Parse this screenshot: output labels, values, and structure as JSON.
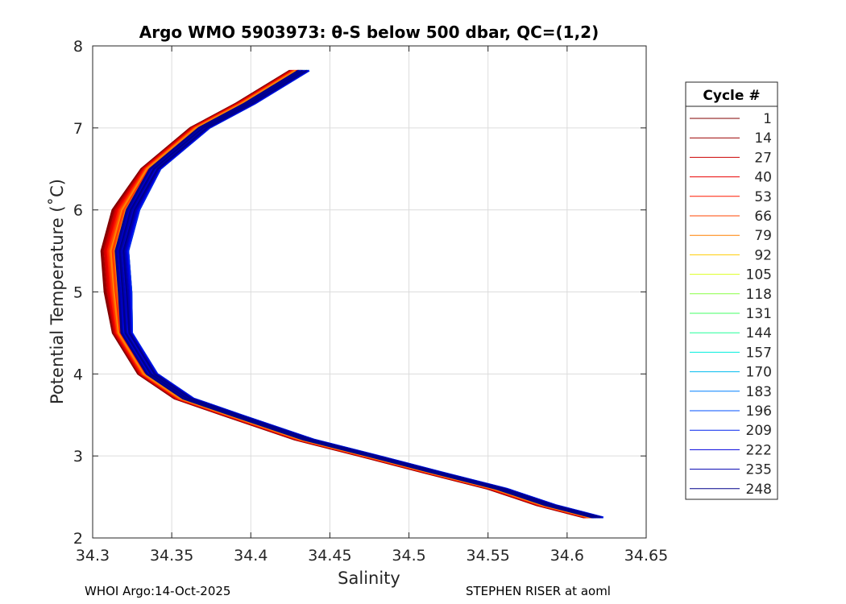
{
  "chart_data": {
    "type": "line",
    "title": "Argo WMO 5903973: θ-S below 500 dbar,  QC=(1,2)",
    "xlabel": "Salinity",
    "ylabel": "Potential Temperature (˚C)",
    "xlim": [
      34.3,
      34.65
    ],
    "ylim": [
      2,
      8
    ],
    "xticks": [
      "34.3",
      "34.35",
      "34.4",
      "34.45",
      "34.5",
      "34.55",
      "34.6",
      "34.65"
    ],
    "yticks": [
      "2",
      "3",
      "4",
      "5",
      "6",
      "7",
      "8"
    ],
    "grid": true,
    "legend": {
      "title": "Cycle #",
      "placement": "right",
      "entries": [
        {
          "label": "1",
          "color": "#800000"
        },
        {
          "label": "14",
          "color": "#9a0000"
        },
        {
          "label": "27",
          "color": "#cc0000"
        },
        {
          "label": "40",
          "color": "#e80000"
        },
        {
          "label": "53",
          "color": "#ff1a00"
        },
        {
          "label": "66",
          "color": "#ff4400"
        },
        {
          "label": "79",
          "color": "#ff8000"
        },
        {
          "label": "92",
          "color": "#ffcc00"
        },
        {
          "label": "105",
          "color": "#ddff22"
        },
        {
          "label": "118",
          "color": "#88ff44"
        },
        {
          "label": "131",
          "color": "#44ff66"
        },
        {
          "label": "144",
          "color": "#22ff99"
        },
        {
          "label": "157",
          "color": "#00eedd"
        },
        {
          "label": "170",
          "color": "#00bbee"
        },
        {
          "label": "183",
          "color": "#0080ff"
        },
        {
          "label": "196",
          "color": "#0050ff"
        },
        {
          "label": "209",
          "color": "#0022ee"
        },
        {
          "label": "222",
          "color": "#0000dd"
        },
        {
          "label": "235",
          "color": "#0000b0"
        },
        {
          "label": "248",
          "color": "#00008a"
        }
      ]
    },
    "base_profile": {
      "theta": [
        7.7,
        7.3,
        7.0,
        6.5,
        6.0,
        5.5,
        5.0,
        4.5,
        4.0,
        3.7,
        3.5,
        3.2,
        3.0,
        2.8,
        2.6,
        2.4,
        2.25
      ],
      "salinity": [
        34.432,
        34.398,
        34.369,
        34.338,
        34.323,
        34.316,
        34.318,
        34.32,
        34.336,
        34.359,
        34.389,
        34.435,
        34.476,
        34.516,
        34.557,
        34.588,
        34.618
      ]
    },
    "cycle_salinity_offsets": [
      -0.008,
      -0.007,
      -0.006,
      -0.005,
      -0.004,
      -0.003,
      -0.002,
      0.004,
      0.003,
      0.002,
      0.002,
      0.002,
      0.003,
      0.003,
      0.004,
      0.004,
      0.004,
      0.003,
      0.002,
      0.001
    ]
  },
  "footer": {
    "left": "WHOI Argo:14-Oct-2025",
    "right": "STEPHEN RISER at aoml"
  }
}
